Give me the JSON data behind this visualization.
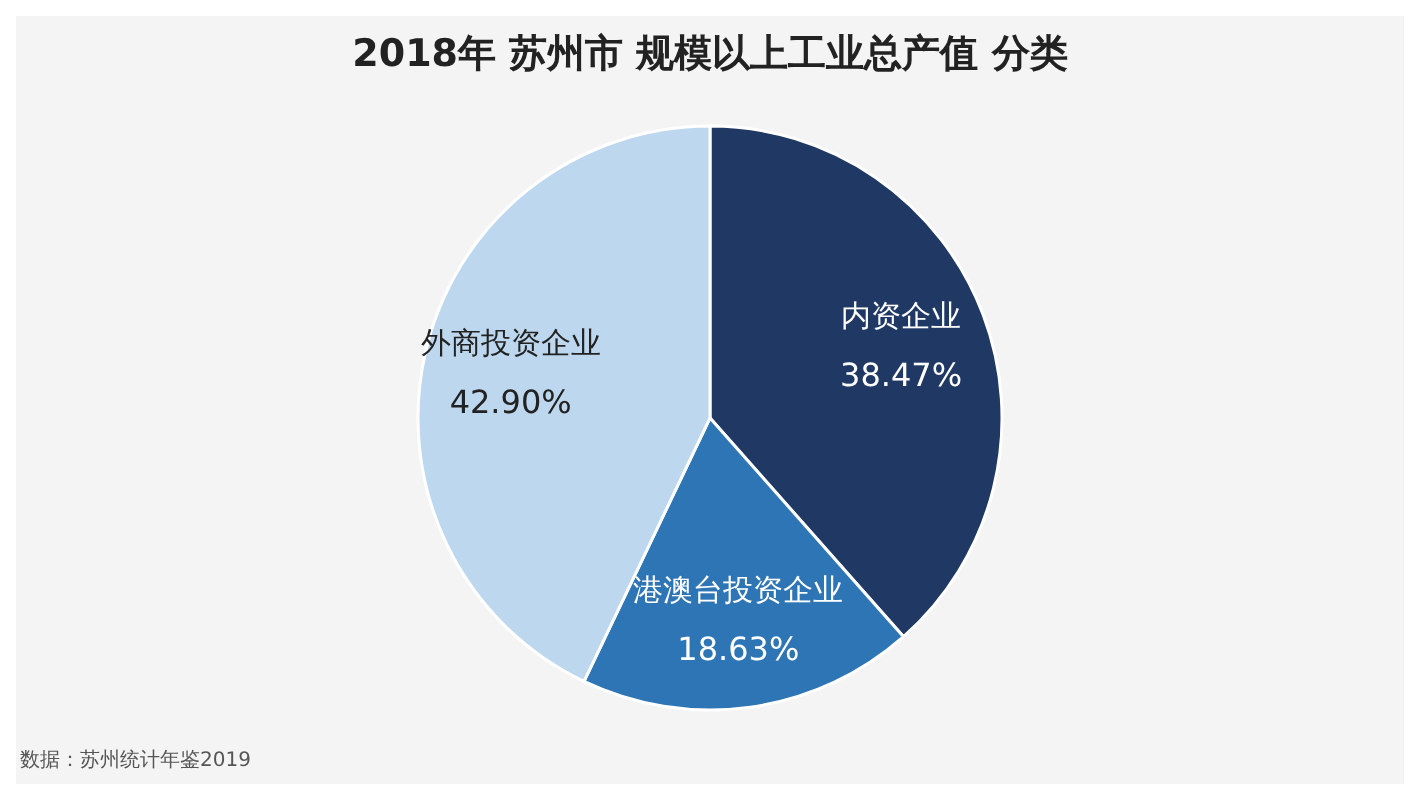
{
  "chart_data": {
    "type": "pie",
    "title": "2018年 苏州市 规模以上工业总产值 分类",
    "categories": [
      "内资企业",
      "港澳台投资企业",
      "外商投资企业"
    ],
    "values": [
      38.47,
      18.63,
      42.9
    ],
    "value_labels": [
      "38.47%",
      "18.63%",
      "42.90%"
    ],
    "colors": [
      "#203864",
      "#2e75b6",
      "#bdd7ee"
    ],
    "annotations": [
      "数据：苏州统计年鉴2019"
    ]
  }
}
